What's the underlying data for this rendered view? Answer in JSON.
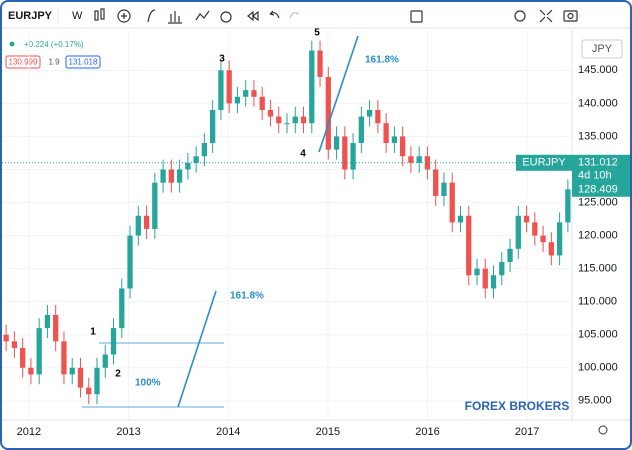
{
  "toolbar": {
    "symbol": "EURJPY",
    "interval": "W"
  },
  "legend": {
    "change": "+0.224 (+0.17%)",
    "bid": 130.999,
    "spread": 1.9,
    "ask": 131.018
  },
  "price_labels": {
    "currency": "JPY",
    "symbol": "EURJPY",
    "last": 131.012,
    "countdown": "4d 10h",
    "close": 128.409
  },
  "annotations": {
    "waves": [
      "1",
      "2",
      "3",
      "4",
      "5"
    ],
    "fib_upper": "161.8%",
    "fib_lower": "161.8%",
    "fib_base": "100%"
  },
  "watermark": "FOREX BROKERS",
  "chart_data": {
    "type": "candlestick",
    "up_color": "#26a69a",
    "down_color": "#ef5350",
    "grid": true,
    "xlim": [
      2011.73,
      2017.45
    ],
    "xticks": [
      2012,
      2013,
      2014,
      2015,
      2016,
      2017
    ],
    "ylim": [
      92.1,
      151.1
    ],
    "yticks": [
      {
        "value": 95,
        "label": "95.000"
      },
      {
        "value": 100,
        "label": "100.000"
      },
      {
        "value": 105,
        "label": "105.000"
      },
      {
        "value": 110,
        "label": "110.000"
      },
      {
        "value": 115,
        "label": "115.000"
      },
      {
        "value": 120,
        "label": "120.000"
      },
      {
        "value": 125,
        "label": "125.000"
      },
      {
        "value": 130,
        "label": "130.000"
      },
      {
        "value": 135,
        "label": "135.000"
      },
      {
        "value": 140,
        "label": "140.000"
      },
      {
        "value": 145,
        "label": "145.000"
      }
    ],
    "open": [
      105,
      104,
      103,
      100,
      99,
      106,
      108,
      104,
      99,
      100,
      97,
      96,
      100,
      102,
      106,
      112,
      120,
      123,
      121,
      128,
      130,
      128,
      130,
      131,
      132,
      134,
      139,
      145,
      140,
      141,
      142,
      141,
      139,
      138,
      137,
      137,
      138,
      137,
      148,
      144,
      133,
      135,
      130,
      134,
      138,
      139,
      137,
      134,
      135,
      132,
      131,
      132,
      130,
      126,
      128,
      122,
      123,
      114,
      115,
      112,
      114,
      116,
      118,
      123,
      122,
      120,
      119,
      117,
      122
    ],
    "high": [
      106.5,
      105.5,
      104.5,
      101.5,
      107.5,
      109.5,
      109.5,
      105.5,
      101.5,
      101.5,
      98.5,
      101.5,
      103.5,
      107.5,
      113.5,
      121.5,
      124.5,
      124.5,
      129.5,
      131.5,
      131.5,
      131.5,
      132.5,
      133.5,
      135.5,
      140.5,
      146.5,
      146.5,
      142.5,
      143.5,
      143.5,
      142.5,
      140.5,
      139.5,
      138.5,
      139.5,
      139.5,
      149.5,
      149.5,
      145.5,
      136.5,
      136.5,
      135.5,
      139.5,
      140.5,
      140.5,
      138.5,
      136.5,
      136.5,
      133.5,
      133.5,
      133.5,
      131.5,
      129.5,
      129.5,
      124.5,
      124.5,
      116.5,
      116.5,
      115.5,
      117.5,
      119.5,
      124.5,
      124.5,
      123.5,
      121.5,
      120.5,
      123.5,
      128.5
    ],
    "low": [
      102.5,
      101.5,
      98.5,
      97.5,
      97.5,
      104.5,
      102.5,
      97.5,
      97.5,
      95.5,
      94.5,
      94.5,
      98.5,
      100.5,
      104.5,
      110.5,
      118.5,
      119.5,
      119.5,
      126.5,
      126.5,
      126.5,
      128.5,
      129.5,
      130.5,
      132.5,
      137.5,
      138.5,
      138.5,
      139.5,
      139.5,
      137.5,
      136.5,
      135.5,
      135.5,
      135.5,
      135.5,
      135.5,
      142.5,
      131.5,
      131.5,
      128.5,
      128.5,
      132.5,
      136.5,
      135.5,
      132.5,
      132.5,
      130.5,
      129.5,
      129.5,
      128.5,
      124.5,
      124.5,
      120.5,
      120.5,
      112.5,
      112.5,
      110.5,
      110.5,
      112.5,
      114.5,
      116.5,
      120.5,
      118.5,
      117.5,
      115.5,
      115.5,
      120.5
    ],
    "close": [
      104,
      103,
      100,
      99,
      106,
      108,
      104,
      99,
      100,
      97,
      96,
      100,
      102,
      106,
      112,
      120,
      123,
      121,
      128,
      130,
      128,
      130,
      131,
      132,
      134,
      139,
      145,
      140,
      141,
      142,
      141,
      139,
      138,
      137,
      137,
      138,
      137,
      148,
      144,
      133,
      135,
      130,
      134,
      138,
      139,
      137,
      134,
      135,
      132,
      131,
      132,
      130,
      126,
      128,
      122,
      123,
      114,
      115,
      112,
      114,
      116,
      118,
      123,
      122,
      120,
      119,
      117,
      122,
      127
    ]
  }
}
